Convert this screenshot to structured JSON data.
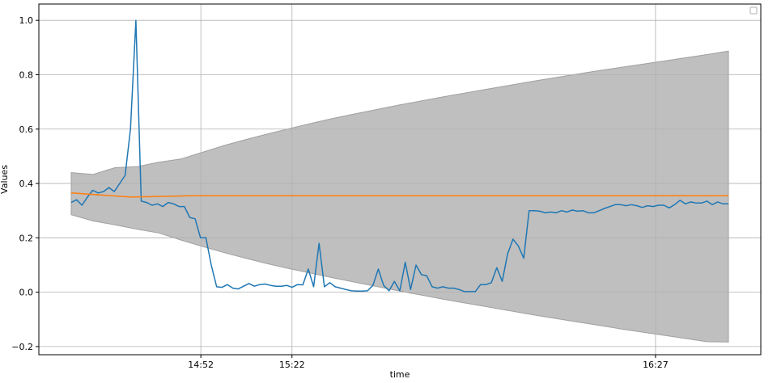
{
  "chart_data": {
    "type": "line",
    "title": "",
    "xlabel": "time",
    "ylabel": "Values",
    "x_tick_labels": [
      "14:52",
      "15:22",
      "16:27"
    ],
    "y_ticks": [
      -0.2,
      0.0,
      0.2,
      0.4,
      0.6,
      0.8,
      1.0
    ],
    "y_tick_labels": [
      "−0.2",
      "0.0",
      "0.2",
      "0.4",
      "0.6",
      "0.8",
      "1.0"
    ],
    "ylim": [
      -0.23,
      1.06
    ],
    "grid": true,
    "legend": "top-right",
    "colors": {
      "actual": "#1f77b4",
      "mean": "#ff7f0e",
      "band": "#bfbfbf",
      "band_edge": "#a0a0a0"
    },
    "x_time_minutes": [
      14.2,
      27.0,
      29.2,
      32.0,
      36.0,
      40.1,
      44.1,
      47.1,
      51.1,
      55.0,
      59.1,
      63.3,
      67.2,
      71.9,
      75.0,
      79.1
    ],
    "series": [
      {
        "key": "actual",
        "values": [
          0.33,
          0.34,
          0.32,
          0.35,
          0.375,
          0.365,
          0.37,
          0.385,
          0.37,
          0.4,
          0.43,
          0.6,
          1.0,
          0.335,
          0.33,
          0.32,
          0.325,
          0.315,
          0.33,
          0.325,
          0.315,
          0.315,
          0.275,
          0.27,
          0.2,
          0.2,
          0.1,
          0.02,
          0.018,
          0.028,
          0.015,
          0.012,
          0.022,
          0.032,
          0.022,
          0.028,
          0.03,
          0.025,
          0.022,
          0.022,
          0.025,
          0.018,
          0.028,
          0.027,
          0.085,
          0.02,
          0.18,
          0.02,
          0.035,
          0.02,
          0.015,
          0.01,
          0.005,
          0.004,
          0.004,
          0.005,
          0.025,
          0.085,
          0.025,
          0.005,
          0.04,
          0.005,
          0.11,
          0.01,
          0.1,
          0.065,
          0.06,
          0.02,
          0.015,
          0.02,
          0.015,
          0.015,
          0.01,
          0.002,
          0.002,
          0.002,
          0.028,
          0.028,
          0.035,
          0.09,
          0.04,
          0.14,
          0.195,
          0.17,
          0.125,
          0.3,
          0.3,
          0.298,
          0.292,
          0.295,
          0.292,
          0.3,
          0.295,
          0.302,
          0.298,
          0.3,
          0.292,
          0.292,
          0.3,
          0.308,
          0.315,
          0.322,
          0.322,
          0.318,
          0.322,
          0.318,
          0.312,
          0.318,
          0.315,
          0.32,
          0.32,
          0.31,
          0.322,
          0.338,
          0.325,
          0.332,
          0.328,
          0.328,
          0.335,
          0.322,
          0.332,
          0.325,
          0.325
        ]
      },
      {
        "key": "mean",
        "values": [
          0.365,
          0.35,
          0.355,
          0.355,
          0.355,
          0.355,
          0.355,
          0.355,
          0.355,
          0.355,
          0.355,
          0.355
        ]
      }
    ],
    "band": {
      "upper": [
        0.44,
        0.433,
        0.458,
        0.462,
        0.478,
        0.49,
        0.515,
        0.54,
        0.562,
        0.583,
        0.603,
        0.622,
        0.64,
        0.657,
        0.673,
        0.689,
        0.704,
        0.719,
        0.733,
        0.747,
        0.761,
        0.775,
        0.788,
        0.801,
        0.814,
        0.826,
        0.838,
        0.85,
        0.862,
        0.874,
        0.887
      ],
      "lower": [
        0.285,
        0.262,
        0.248,
        0.232,
        0.218,
        0.192,
        0.168,
        0.145,
        0.124,
        0.104,
        0.086,
        0.069,
        0.052,
        0.036,
        0.02,
        0.004,
        -0.011,
        -0.026,
        -0.04,
        -0.054,
        -0.068,
        -0.082,
        -0.095,
        -0.108,
        -0.121,
        -0.134,
        -0.146,
        -0.158,
        -0.17,
        -0.182,
        -0.183
      ]
    }
  }
}
